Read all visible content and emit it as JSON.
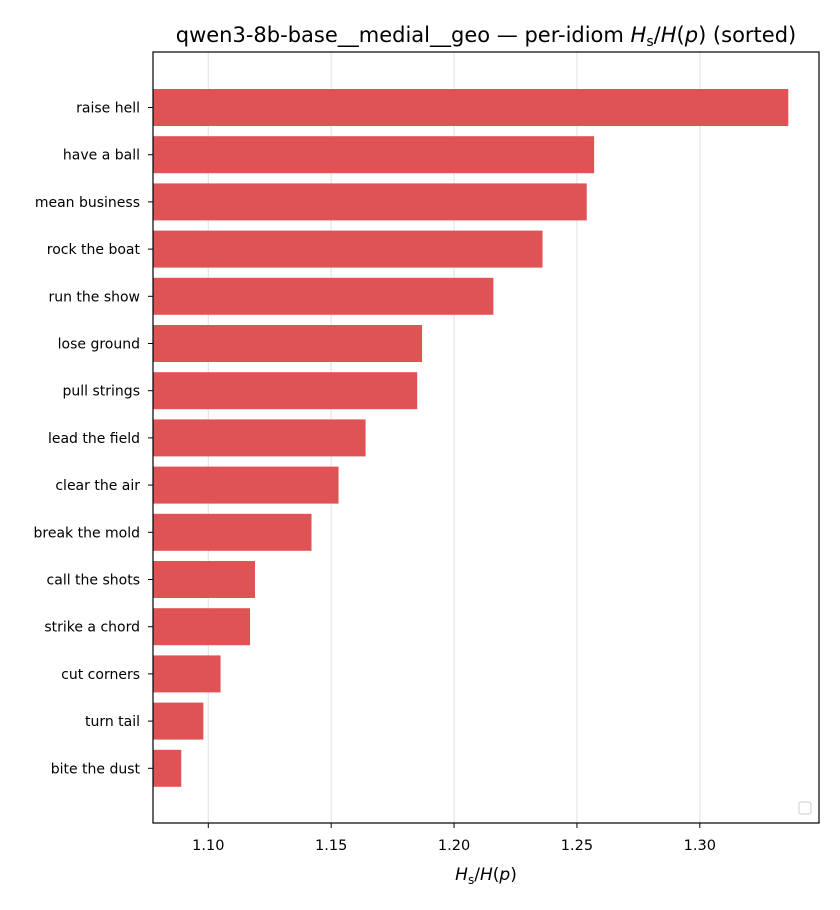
{
  "chart_data": {
    "type": "bar",
    "orientation": "horizontal",
    "sorted": "descending",
    "title": "qwen3-8b-base__medial__geo — per-idiom H_s/H(p) (sorted)",
    "xlabel": "H_s/H(p)",
    "ylabel": "",
    "categories": [
      "raise hell",
      "have a ball",
      "mean business",
      "rock the boat",
      "run the show",
      "lose ground",
      "pull strings",
      "lead the field",
      "clear the air",
      "break the mold",
      "call the shots",
      "strike a chord",
      "cut corners",
      "turn tail",
      "bite the dust"
    ],
    "values": [
      1.336,
      1.257,
      1.254,
      1.236,
      1.216,
      1.187,
      1.185,
      1.164,
      1.153,
      1.142,
      1.119,
      1.117,
      1.105,
      1.098,
      1.089
    ],
    "xlim": [
      1.0775,
      1.3485
    ],
    "xticks": [
      "1.10",
      "1.15",
      "1.20",
      "1.25",
      "1.30"
    ],
    "xtick_values": [
      1.1,
      1.15,
      1.2,
      1.25,
      1.3
    ],
    "grid": "vertical",
    "legend": "lower-right (empty)",
    "colors": {
      "bar": "#e05355",
      "grid": "#e6e6e6",
      "axis": "#000000"
    }
  }
}
